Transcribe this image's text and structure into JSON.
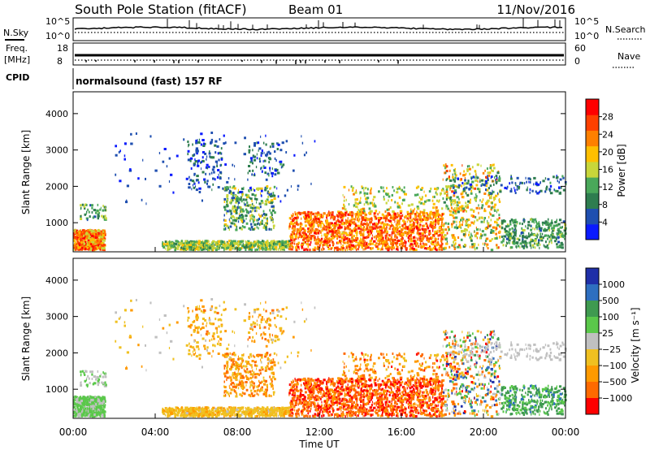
{
  "header": {
    "station": "South Pole Station (fitACF)",
    "beam": "Beam 01",
    "date": "11/Nov/2016"
  },
  "status_panels": {
    "nsky_label": "N.Sky",
    "nsearch_label": "N.Search",
    "nsky_ticks": [
      "10^5",
      "10^0"
    ],
    "nsearch_ticks": [
      "10^5",
      "10^0"
    ],
    "freq_label_line1": "Freq.",
    "freq_label_line2": "[MHz]",
    "freq_ticks": [
      "18",
      "8"
    ],
    "nave_label": "Nave",
    "nave_ticks": [
      "60",
      "0"
    ],
    "cpid_label": "CPID",
    "cpid_text": "normalsound (fast) 157 RF"
  },
  "colors": {
    "power_scale": [
      "#0a1aff",
      "#1f4fb0",
      "#2e7d4f",
      "#4aa85a",
      "#c8d63a",
      "#ffbf00",
      "#ff8000",
      "#ff4000",
      "#ff0000"
    ],
    "velocity_scale": [
      "#1f2fa8",
      "#2e6fc0",
      "#3f9a50",
      "#5ac84a",
      "#c0c0c0",
      "#f0c020",
      "#ff9a00",
      "#ff6a00",
      "#ff0000"
    ]
  },
  "chart_data": [
    {
      "type": "heatmap",
      "name": "power",
      "ylabel": "Slant Range [km]",
      "xlabel": "",
      "y_ticks": [
        "1000",
        "2000",
        "3000",
        "4000"
      ],
      "ylim": [
        200,
        4600
      ],
      "xlim": [
        0,
        24
      ],
      "colorbar_label": "Power [dB]",
      "colorbar_ticks": [
        "4",
        "8",
        "12",
        "16",
        "20",
        "24",
        "28"
      ],
      "colorbar_range": [
        0,
        32
      ]
    },
    {
      "type": "heatmap",
      "name": "velocity",
      "ylabel": "Slant Range [km]",
      "xlabel": "Time UT",
      "y_ticks": [
        "1000",
        "2000",
        "3000",
        "4000"
      ],
      "ylim": [
        200,
        4600
      ],
      "xlim": [
        0,
        24
      ],
      "x_ticks": [
        "00:00",
        "04:00",
        "08:00",
        "12:00",
        "16:00",
        "20:00",
        "00:00"
      ],
      "colorbar_label": "Velocity [m s⁻¹]",
      "colorbar_ticks": [
        "1000",
        "500",
        "100",
        "25",
        "−25",
        "−100",
        "−500",
        "−1000"
      ]
    }
  ]
}
